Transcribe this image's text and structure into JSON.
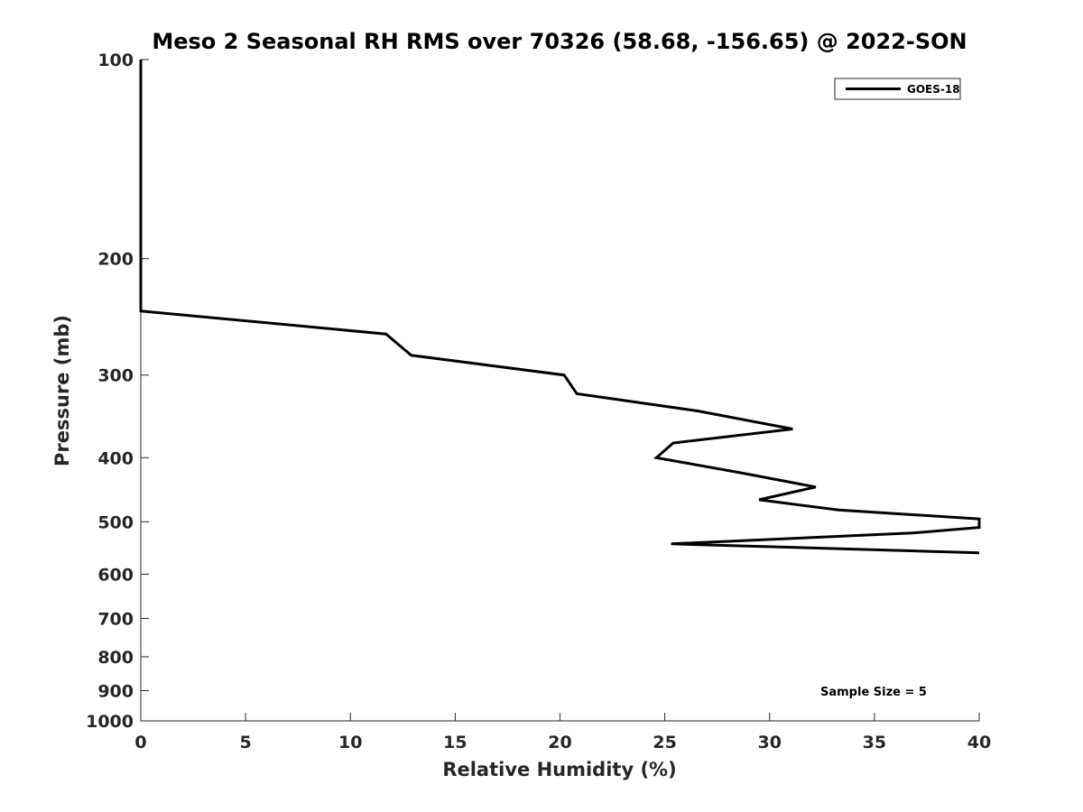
{
  "chart_data": {
    "type": "line",
    "title": "Meso 2 Seasonal RH RMS over 70326 (58.68, -156.65) @ 2022-SON",
    "xlabel": "Relative Humidity (%)",
    "ylabel": "Pressure (mb)",
    "xlim": [
      0,
      40
    ],
    "ylim": [
      100,
      1000
    ],
    "yscale": "log",
    "yreversed": true,
    "grid": false,
    "legend_position": "top-right",
    "x_ticks": [
      0,
      5,
      10,
      15,
      20,
      25,
      30,
      35,
      40
    ],
    "y_ticks": [
      100,
      200,
      300,
      400,
      500,
      600,
      700,
      800,
      900,
      1000
    ],
    "annotation": "Sample Size = 5",
    "series": [
      {
        "name": "GOES-18",
        "color": "#000000",
        "points": [
          [
            0.0,
            100
          ],
          [
            0.0,
            150
          ],
          [
            0.0,
            200
          ],
          [
            0.0,
            240
          ],
          [
            11.7,
            260
          ],
          [
            12.9,
            280
          ],
          [
            20.2,
            300
          ],
          [
            20.8,
            320
          ],
          [
            26.6,
            340
          ],
          [
            31.1,
            362
          ],
          [
            25.4,
            380
          ],
          [
            24.6,
            400
          ],
          [
            28.7,
            422
          ],
          [
            32.2,
            443
          ],
          [
            29.5,
            463
          ],
          [
            33.3,
            480
          ],
          [
            40.0,
            495
          ],
          [
            40.0,
            510
          ],
          [
            36.8,
            520
          ],
          [
            25.3,
            540
          ],
          [
            40.0,
            557
          ]
        ]
      }
    ]
  }
}
